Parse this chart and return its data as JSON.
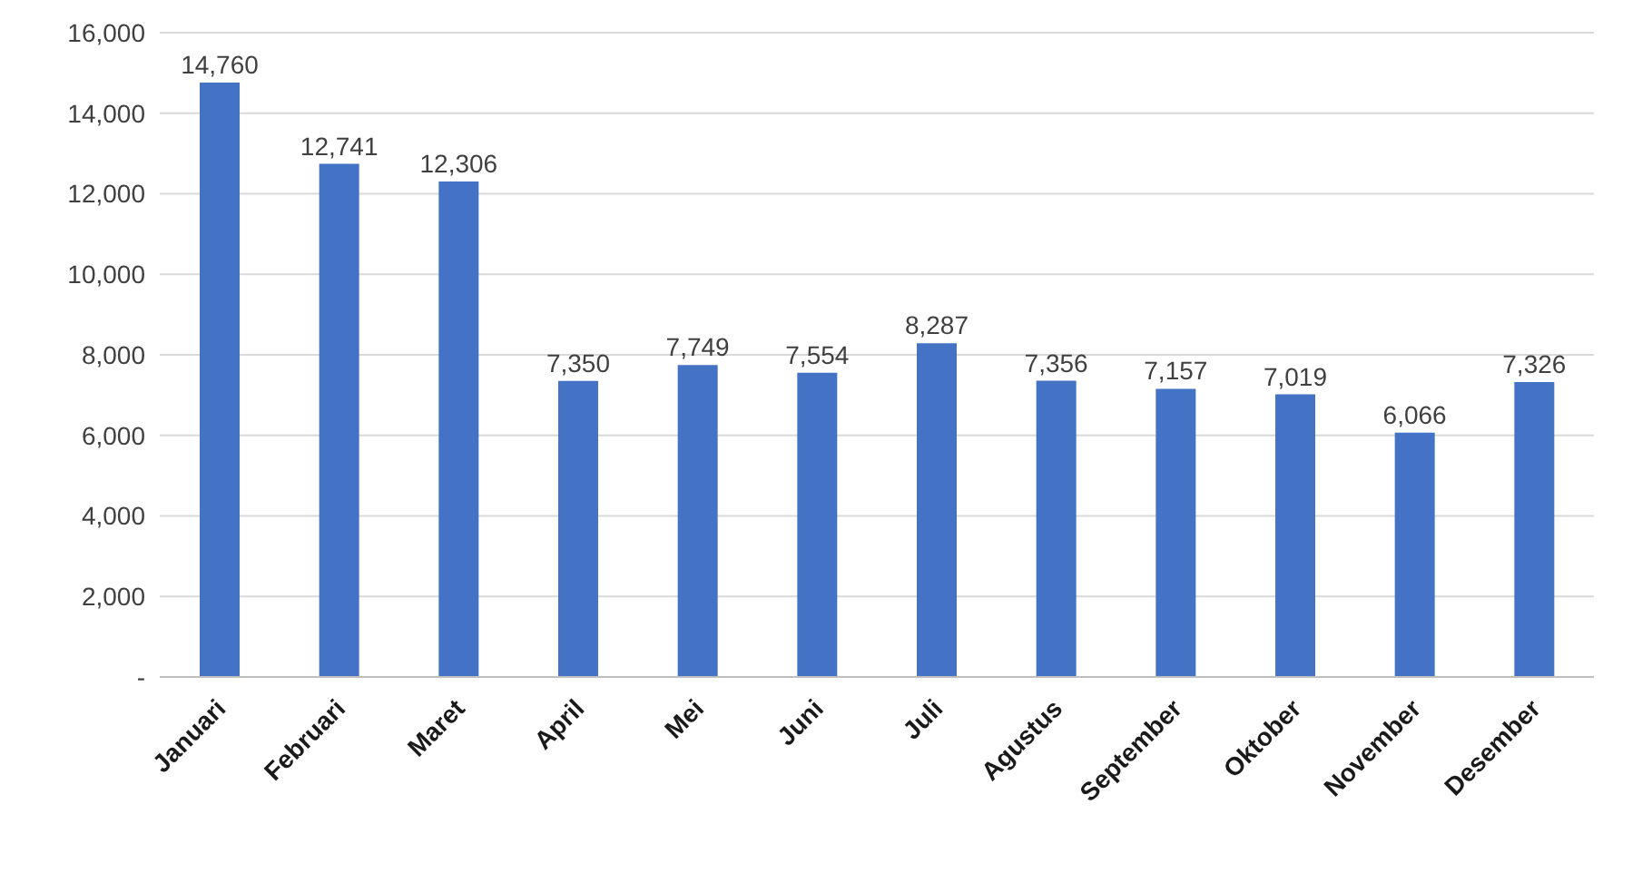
{
  "chart_data": {
    "type": "bar",
    "categories": [
      "Januari",
      "Februari",
      "Maret",
      "April",
      "Mei",
      "Juni",
      "Juli",
      "Agustus",
      "September",
      "Oktober",
      "November",
      "Desember"
    ],
    "values": [
      14760,
      12741,
      12306,
      7350,
      7749,
      7554,
      8287,
      7356,
      7157,
      7019,
      6066,
      7326
    ],
    "value_labels": [
      "14,760",
      "12,741",
      "12,306",
      "7,350",
      "7,749",
      "7,554",
      "8,287",
      "7,356",
      "7,157",
      "7,019",
      "6,066",
      "7,326"
    ],
    "color": "#4472c4",
    "ylim": [
      0,
      16000
    ],
    "yticks": [
      {
        "value": 0,
        "label": "-"
      },
      {
        "value": 2000,
        "label": "2,000"
      },
      {
        "value": 4000,
        "label": "4,000"
      },
      {
        "value": 6000,
        "label": "6,000"
      },
      {
        "value": 8000,
        "label": "8,000"
      },
      {
        "value": 10000,
        "label": "10,000"
      },
      {
        "value": 12000,
        "label": "12,000"
      },
      {
        "value": 14000,
        "label": "14,000"
      },
      {
        "value": 16000,
        "label": "16,000"
      }
    ],
    "grid": "y"
  }
}
